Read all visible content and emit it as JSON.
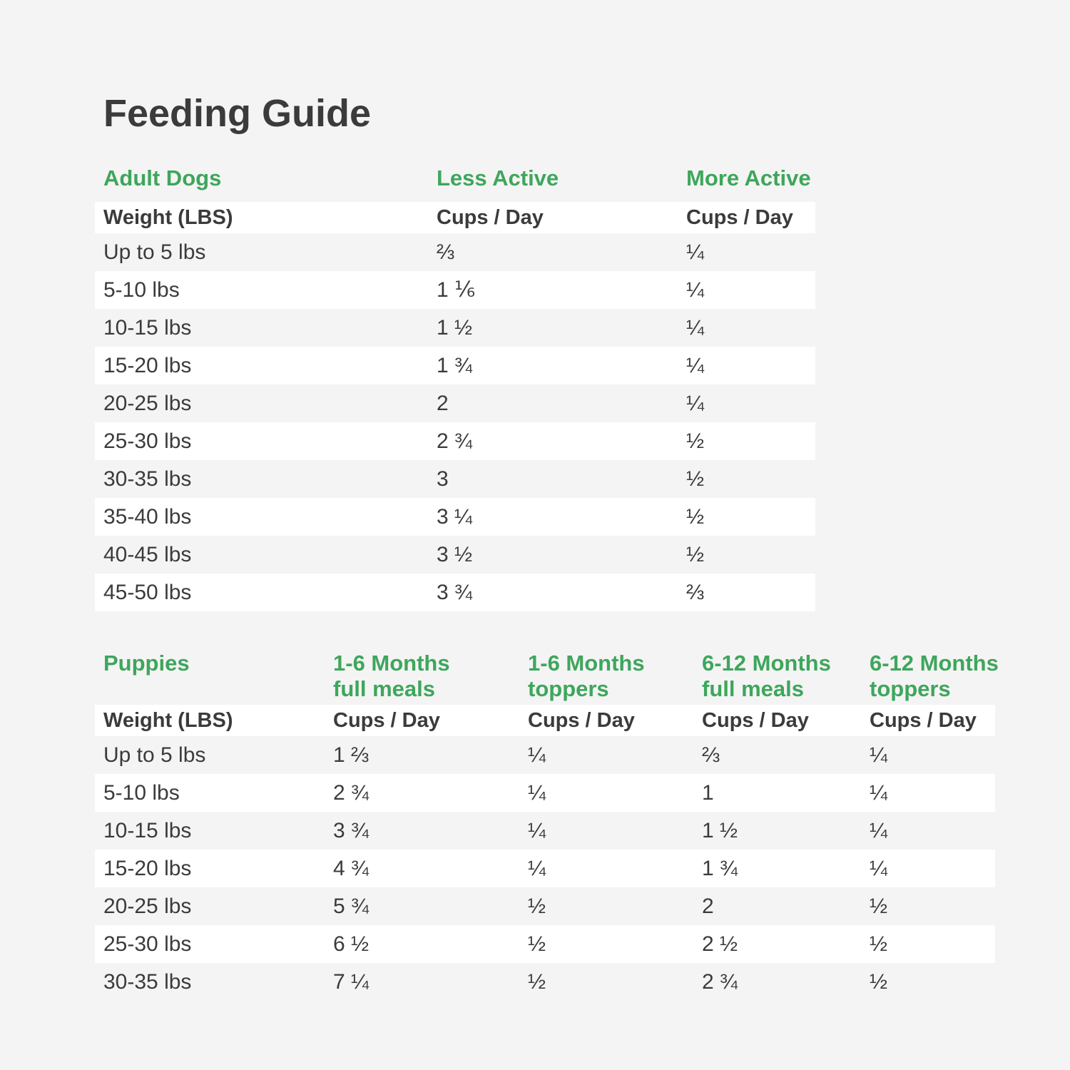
{
  "page": {
    "title": "Feeding Guide",
    "colors": {
      "background": "#f4f4f4",
      "row_stripe": "#ffffff",
      "accent_green": "#3ea65c",
      "text_dark": "#3b3b3b"
    }
  },
  "adult": {
    "section_label": "Adult Dogs",
    "group_headers": [
      "Less Active",
      "More Active"
    ],
    "weight_header": "Weight (LBS)",
    "cups_header": "Cups / Day",
    "rows": [
      {
        "weight": "Up to 5 lbs",
        "values": [
          "⅔",
          "¼"
        ]
      },
      {
        "weight": "5-10 lbs",
        "values": [
          "1 ⅙",
          "¼"
        ]
      },
      {
        "weight": "10-15 lbs",
        "values": [
          "1 ½",
          "¼"
        ]
      },
      {
        "weight": "15-20 lbs",
        "values": [
          "1 ¾",
          "¼"
        ]
      },
      {
        "weight": "20-25 lbs",
        "values": [
          "2",
          "¼"
        ]
      },
      {
        "weight": "25-30 lbs",
        "values": [
          "2 ¾",
          "½"
        ]
      },
      {
        "weight": "30-35 lbs",
        "values": [
          "3",
          "½"
        ]
      },
      {
        "weight": "35-40 lbs",
        "values": [
          "3 ¼",
          "½"
        ]
      },
      {
        "weight": "40-45 lbs",
        "values": [
          "3 ½",
          "½"
        ]
      },
      {
        "weight": "45-50 lbs",
        "values": [
          "3 ¾",
          "⅔"
        ]
      }
    ]
  },
  "puppies": {
    "section_label": "Puppies",
    "group_headers": [
      {
        "line1": "1-6 Months",
        "line2": "full meals"
      },
      {
        "line1": "1-6 Months",
        "line2": "toppers"
      },
      {
        "line1": "6-12 Months",
        "line2": "full meals"
      },
      {
        "line1": "6-12 Months",
        "line2": "toppers"
      }
    ],
    "weight_header": "Weight (LBS)",
    "cups_header": "Cups / Day",
    "rows": [
      {
        "weight": "Up to 5 lbs",
        "values": [
          "1 ⅔",
          "¼",
          "⅔",
          "¼"
        ]
      },
      {
        "weight": "5-10 lbs",
        "values": [
          "2 ¾",
          "¼",
          "1",
          "¼"
        ]
      },
      {
        "weight": "10-15 lbs",
        "values": [
          "3 ¾",
          "¼",
          "1 ½",
          "¼"
        ]
      },
      {
        "weight": "15-20 lbs",
        "values": [
          "4 ¾",
          "¼",
          "1 ¾",
          "¼"
        ]
      },
      {
        "weight": "20-25 lbs",
        "values": [
          "5 ¾",
          "½",
          "2",
          "½"
        ]
      },
      {
        "weight": "25-30 lbs",
        "values": [
          "6 ½",
          "½",
          "2 ½",
          "½"
        ]
      },
      {
        "weight": "30-35 lbs",
        "values": [
          "7 ¼",
          "½",
          "2 ¾",
          "½"
        ]
      }
    ]
  }
}
